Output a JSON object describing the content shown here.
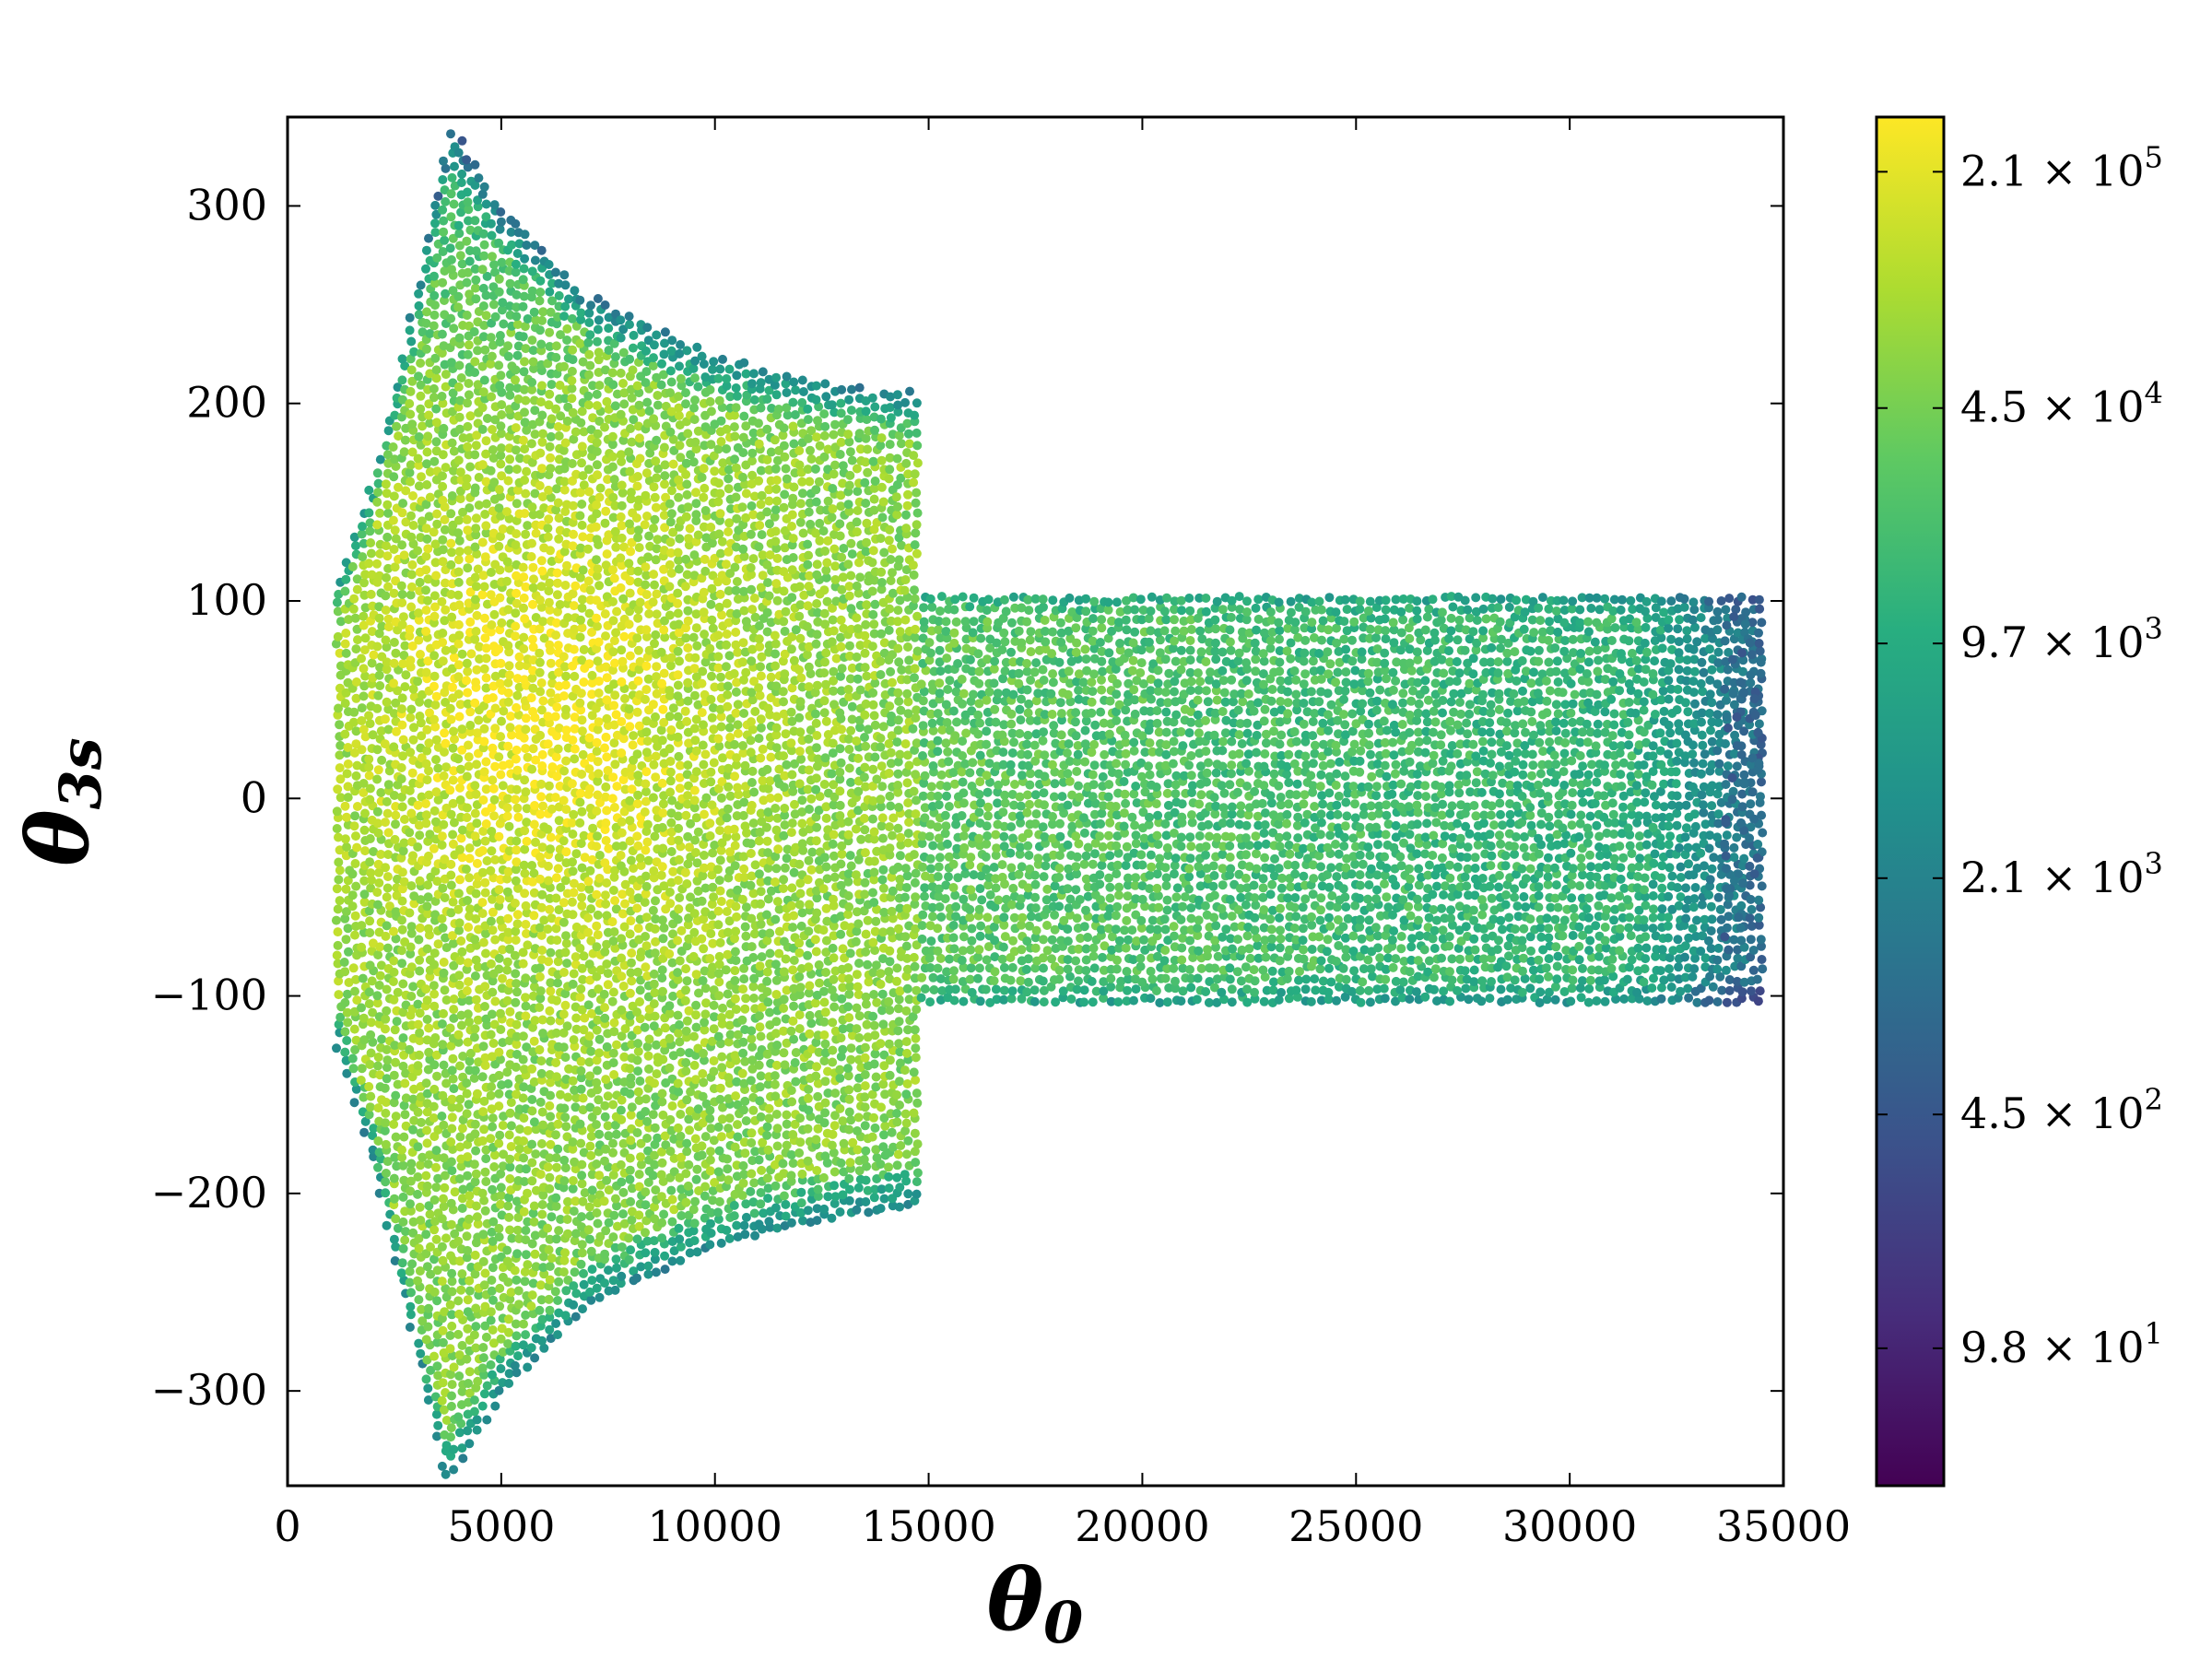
{
  "chart_data": {
    "type": "scatter",
    "title": "",
    "xlabel": "θ",
    "xlabel_sub": "0",
    "ylabel": "θ",
    "ylabel_sub": "3s",
    "xlim": [
      0,
      35000
    ],
    "ylim": [
      -348,
      345
    ],
    "x_ticks": [
      0,
      5000,
      10000,
      15000,
      20000,
      25000,
      30000,
      35000
    ],
    "x_tick_labels": [
      "0",
      "5000",
      "10000",
      "15000",
      "20000",
      "25000",
      "30000",
      "35000"
    ],
    "y_ticks": [
      -300,
      -200,
      -100,
      0,
      100,
      200,
      300
    ],
    "y_tick_labels": [
      "−300",
      "−200",
      "−100",
      "0",
      "100",
      "200",
      "300"
    ],
    "grid": false,
    "colormap": "viridis",
    "colorbar": {
      "scale": "log",
      "range": [
        40,
        300000
      ],
      "ticks": [
        {
          "value": 210000,
          "mantissa": "2.1",
          "exponent": "5"
        },
        {
          "value": 45000,
          "mantissa": "4.5",
          "exponent": "4"
        },
        {
          "value": 9700,
          "mantissa": "9.7",
          "exponent": "3"
        },
        {
          "value": 2100,
          "mantissa": "2.1",
          "exponent": "3"
        },
        {
          "value": 450,
          "mantissa": "4.5",
          "exponent": "2"
        },
        {
          "value": 98,
          "mantissa": "9.8",
          "exponent": "1"
        }
      ],
      "times_symbol": "×",
      "base": "10"
    },
    "regions": [
      {
        "name": "flared region",
        "x_range": [
          1200,
          14700
        ],
        "y_upper_boundary": [
          [
            1200,
            110
          ],
          [
            2000,
            160
          ],
          [
            3000,
            255
          ],
          [
            3800,
            342
          ],
          [
            5000,
            300
          ],
          [
            7000,
            255
          ],
          [
            10000,
            225
          ],
          [
            13000,
            208
          ],
          [
            14700,
            205
          ]
        ],
        "y_lower_boundary": [
          [
            1200,
            -125
          ],
          [
            2000,
            -185
          ],
          [
            3000,
            -275
          ],
          [
            3700,
            -345
          ],
          [
            5000,
            -300
          ],
          [
            7000,
            -255
          ],
          [
            10000,
            -225
          ],
          [
            13000,
            -210
          ],
          [
            14700,
            -205
          ]
        ],
        "typical_density": 60000
      },
      {
        "name": "band region",
        "x_range": [
          14700,
          34500
        ],
        "y_range": [
          -102,
          103
        ],
        "typical_density": 12000
      },
      {
        "name": "dense core",
        "center": [
          6000,
          40
        ],
        "typical_density": 200000
      }
    ]
  }
}
